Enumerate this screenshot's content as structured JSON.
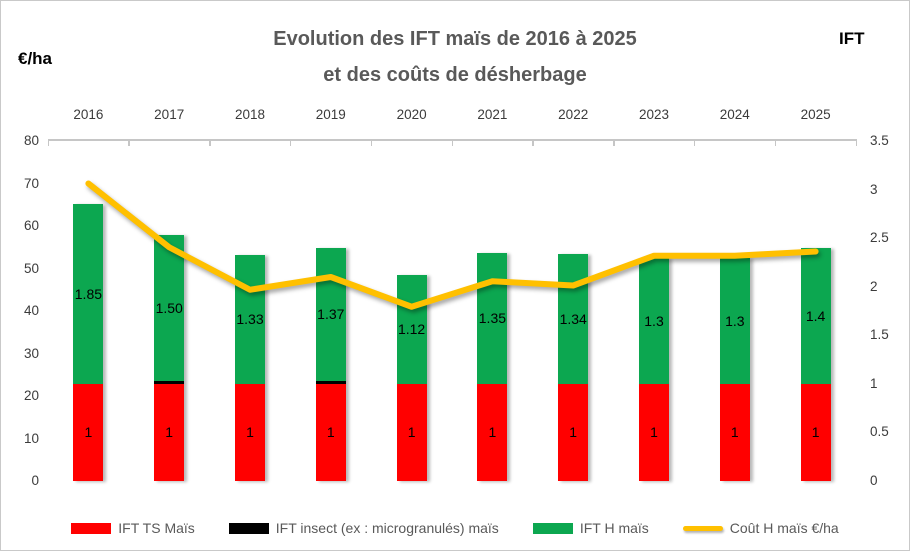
{
  "title": {
    "line1": "Evolution des IFT maïs de 2016 à 2025",
    "line2": "et des coûts de désherbage"
  },
  "chart_data": {
    "type": "bar",
    "subtype": "stacked-bars-with-line-overlay",
    "title": "Evolution des IFT maïs de 2016 à 2025 et des coûts de désherbage",
    "categories": [
      "2016",
      "2017",
      "2018",
      "2019",
      "2020",
      "2021",
      "2022",
      "2023",
      "2024",
      "2025"
    ],
    "series": [
      {
        "name": "IFT TS Maïs",
        "type": "bar",
        "color": "#FF0000",
        "axis": "right_IFT",
        "values": [
          1,
          1,
          1,
          1,
          1,
          1,
          1,
          1,
          1,
          1
        ],
        "data_labels": [
          "1",
          "1",
          "1",
          "1",
          "1",
          "1",
          "1",
          "1",
          "1",
          "1"
        ]
      },
      {
        "name": "IFT insect (ex : microgranulés) maïs",
        "type": "bar",
        "color": "#000000",
        "axis": "right_IFT",
        "values": [
          0,
          0.03,
          0,
          0.03,
          0,
          0,
          0,
          0,
          0,
          0
        ],
        "data_labels": [
          "",
          "",
          "",
          "",
          "",
          "",
          "",
          "",
          "",
          ""
        ]
      },
      {
        "name": "IFT H maïs",
        "type": "bar",
        "color": "#0CA750",
        "axis": "right_IFT",
        "values": [
          1.85,
          1.5,
          1.33,
          1.37,
          1.12,
          1.35,
          1.34,
          1.3,
          1.3,
          1.4
        ],
        "data_labels": [
          "1.85",
          "1.50",
          "1.33",
          "1.37",
          "1.12",
          "1.35",
          "1.34",
          "1.3",
          "1.3",
          "1.4"
        ]
      },
      {
        "name": "Coût H maïs €/ha",
        "type": "line",
        "color": "#FFC000",
        "axis": "left_eur_ha",
        "values": [
          70,
          55,
          45,
          48,
          41,
          47,
          46,
          53,
          53,
          54
        ]
      }
    ],
    "left_axis": {
      "title": "€/ha",
      "min": 0,
      "max": 80,
      "ticks": [
        "80",
        "70",
        "60",
        "50",
        "40",
        "30",
        "20",
        "10",
        "0"
      ]
    },
    "right_axis": {
      "title": "IFT",
      "min": 0,
      "max": 3.5,
      "ticks": [
        "3.5",
        "3",
        "2.5",
        "2",
        "1.5",
        "1",
        "0.5",
        "0"
      ]
    },
    "legend_position": "bottom",
    "grid": "off",
    "colors": {
      "axis_line": "#c6c6c6",
      "text_muted": "#595959",
      "text_axis": "#3b3b3b"
    }
  }
}
